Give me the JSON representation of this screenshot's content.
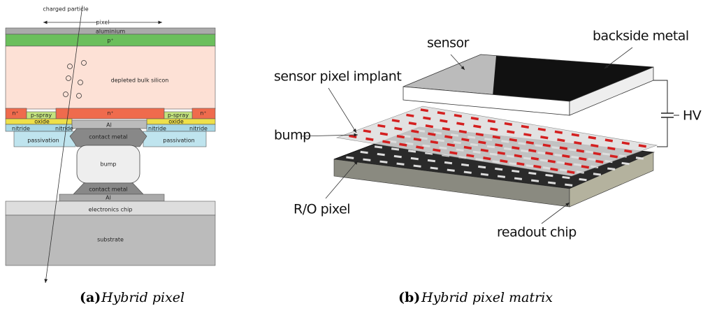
{
  "hybrid_pixel": {
    "labels": [
      "charged particle",
      "pixel",
      "aluminium",
      "p⁺",
      "depleted bulk silicon",
      "n⁺",
      "n⁺",
      "n⁺",
      "p-spray",
      "p-spray",
      "oxide",
      "oxide",
      "Al",
      "nitride",
      "nitride",
      "nitride",
      "nitride",
      "passivation",
      "passivation",
      "contact metal",
      "bump",
      "contact metal",
      "Al",
      "electronics chip",
      "substrate"
    ],
    "caption_label": "(a)",
    "caption": "Hybrid pixel"
  },
  "pixel_matrix": {
    "labels": [
      "sensor",
      "backside metal",
      "sensor pixel implant",
      "HV",
      "bump",
      "R/O pixel",
      "readout chip"
    ],
    "caption_label": "(b)",
    "caption": "Hybrid pixel matrix"
  }
}
